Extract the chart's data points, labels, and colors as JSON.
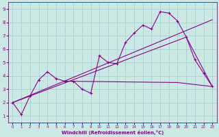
{
  "xlabel": "Windchill (Refroidissement éolien,°C)",
  "bg_color": "#cce8e4",
  "grid_color": "#99cccc",
  "line_color": "#880088",
  "xlim": [
    -0.5,
    23.5
  ],
  "ylim": [
    0.5,
    9.5
  ],
  "xticks": [
    0,
    1,
    2,
    3,
    4,
    5,
    6,
    7,
    8,
    9,
    10,
    11,
    12,
    13,
    14,
    15,
    16,
    17,
    18,
    19,
    20,
    21,
    22,
    23
  ],
  "yticks": [
    1,
    2,
    3,
    4,
    5,
    6,
    7,
    8,
    9
  ],
  "series1_x": [
    0,
    1,
    2,
    3,
    4,
    5,
    6,
    7,
    8,
    9,
    10,
    11,
    12,
    13,
    14,
    15,
    16,
    17,
    18,
    19,
    20,
    21,
    22,
    23
  ],
  "series1_y": [
    2.0,
    1.1,
    2.5,
    3.7,
    4.3,
    3.8,
    3.6,
    3.6,
    3.0,
    2.7,
    5.5,
    5.0,
    4.9,
    6.5,
    7.2,
    7.8,
    7.5,
    8.8,
    8.7,
    8.1,
    6.9,
    5.2,
    4.2,
    3.2
  ],
  "series2_x": [
    0,
    23
  ],
  "series2_y": [
    2.0,
    8.2
  ],
  "series3_x": [
    0,
    20,
    23
  ],
  "series3_y": [
    2.0,
    6.9,
    3.2
  ],
  "series4_x": [
    6,
    19,
    23
  ],
  "series4_y": [
    3.6,
    3.5,
    3.2
  ]
}
